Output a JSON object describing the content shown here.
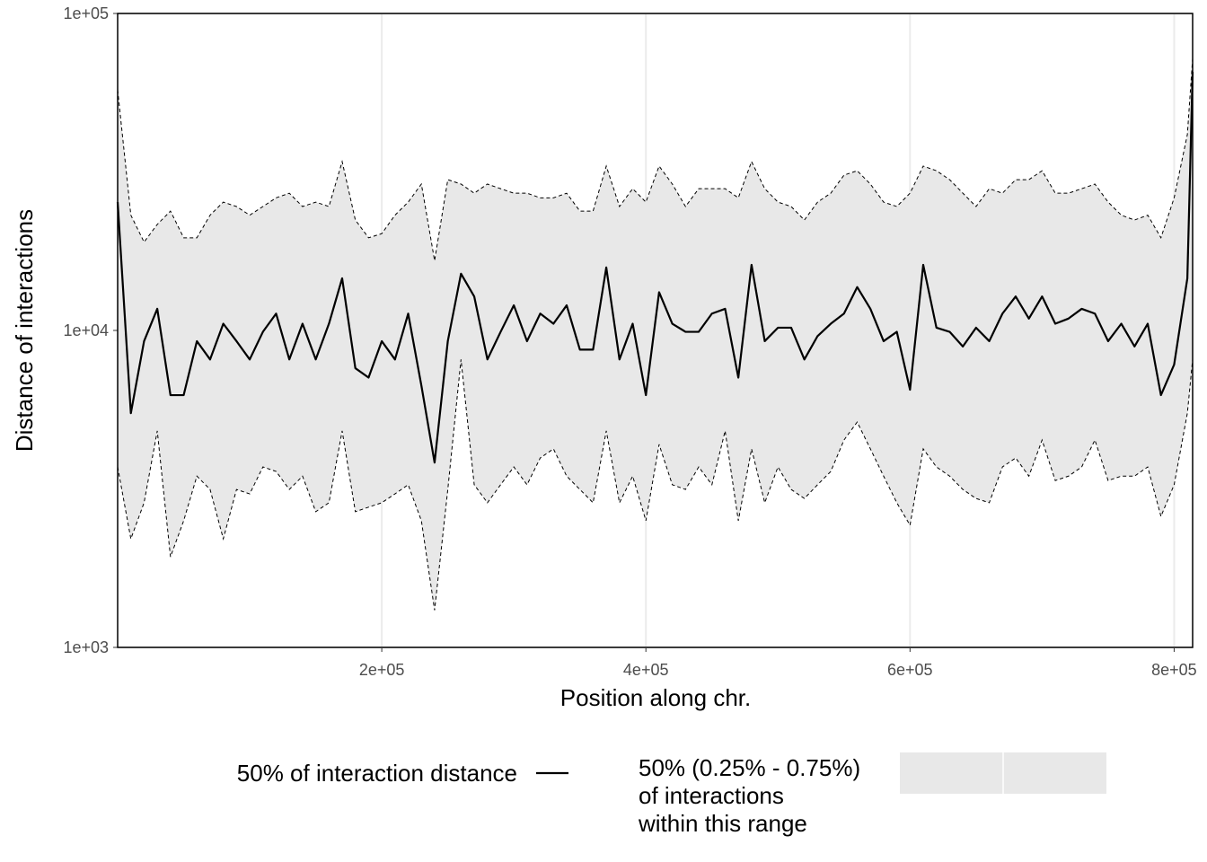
{
  "chart_data": {
    "type": "line",
    "xlabel": "Position along chr.",
    "ylabel": "Distance of interactions",
    "log_y": true,
    "grid": true,
    "legend": "bottom",
    "xlim": [
      0,
      814000
    ],
    "ylim": [
      1000,
      100000
    ],
    "xticks": [
      {
        "value": 200000,
        "label": "2e+05"
      },
      {
        "value": 400000,
        "label": "4e+05"
      },
      {
        "value": 600000,
        "label": "6e+05"
      },
      {
        "value": 800000,
        "label": "8e+05"
      }
    ],
    "yticks": [
      {
        "value": 1000,
        "label": "1e+03"
      },
      {
        "value": 10000,
        "label": "1e+04"
      },
      {
        "value": 100000,
        "label": "1e+05"
      }
    ],
    "x": [
      0,
      10000,
      20000,
      30000,
      40000,
      50000,
      60000,
      70000,
      80000,
      90000,
      100000,
      110000,
      120000,
      130000,
      140000,
      150000,
      160000,
      170000,
      180000,
      190000,
      200000,
      210000,
      220000,
      230000,
      240000,
      250000,
      260000,
      270000,
      280000,
      290000,
      300000,
      310000,
      320000,
      330000,
      340000,
      350000,
      360000,
      370000,
      380000,
      390000,
      400000,
      410000,
      420000,
      430000,
      440000,
      450000,
      460000,
      470000,
      480000,
      490000,
      500000,
      510000,
      520000,
      530000,
      540000,
      550000,
      560000,
      570000,
      580000,
      590000,
      600000,
      610000,
      620000,
      630000,
      640000,
      650000,
      660000,
      670000,
      680000,
      690000,
      700000,
      710000,
      720000,
      730000,
      740000,
      750000,
      760000,
      770000,
      780000,
      790000,
      800000,
      810000,
      814000
    ],
    "series": [
      {
        "name": "50% of interaction distance",
        "color": "#000000",
        "values": [
          25400,
          5480,
          9250,
          11700,
          6250,
          6250,
          9250,
          8100,
          10500,
          9250,
          8100,
          9900,
          11300,
          8100,
          10500,
          8100,
          10500,
          14600,
          7600,
          7100,
          9250,
          8100,
          11300,
          6700,
          3830,
          9250,
          15100,
          12800,
          8100,
          9900,
          12000,
          9250,
          11300,
          10500,
          12000,
          8700,
          8700,
          15800,
          8100,
          10500,
          6250,
          13200,
          10500,
          9900,
          9900,
          11300,
          11700,
          7100,
          16100,
          9250,
          10200,
          10200,
          8100,
          9600,
          10500,
          11300,
          13700,
          11700,
          9250,
          9900,
          6500,
          16100,
          10200,
          9900,
          8900,
          10200,
          9250,
          11300,
          12800,
          10900,
          12800,
          10500,
          10900,
          11700,
          11300,
          9250,
          10500,
          8900,
          10500,
          6250,
          7800,
          14600,
          65400
        ]
      }
    ],
    "band": {
      "name_lines": [
        "50% (0.25% - 0.75%)",
        "of interactions",
        "within this range"
      ],
      "color": "#e8e8e8",
      "upper": [
        57400,
        23100,
        19000,
        21600,
        23800,
        19600,
        19600,
        23100,
        25400,
        24600,
        23100,
        24600,
        26200,
        27100,
        24600,
        25400,
        24600,
        34100,
        22300,
        19600,
        20200,
        23100,
        25400,
        28960,
        16600,
        29900,
        28960,
        27100,
        28960,
        28000,
        27100,
        27100,
        26200,
        26200,
        27100,
        23800,
        23800,
        33000,
        24600,
        28000,
        25400,
        33000,
        28960,
        24600,
        28000,
        28000,
        28000,
        26200,
        34100,
        28000,
        25400,
        24600,
        22300,
        25400,
        27100,
        30900,
        31900,
        28960,
        25400,
        24600,
        27100,
        33000,
        31900,
        29900,
        27100,
        24600,
        28000,
        27100,
        29900,
        29900,
        31900,
        27100,
        27100,
        28000,
        28960,
        25400,
        23100,
        22300,
        23100,
        19600,
        26200,
        41500,
        72100
      ],
      "lower": [
        3710,
        2200,
        2860,
        4820,
        1930,
        2510,
        3470,
        3150,
        2200,
        3150,
        3050,
        3710,
        3590,
        3150,
        3470,
        2680,
        2860,
        4820,
        2680,
        2770,
        2860,
        3050,
        3260,
        2510,
        1310,
        3150,
        8100,
        3260,
        2860,
        3260,
        3710,
        3260,
        3960,
        4230,
        3470,
        3150,
        2860,
        4820,
        2860,
        3470,
        2510,
        4370,
        3260,
        3150,
        3710,
        3260,
        4820,
        2510,
        4230,
        2860,
        3710,
        3150,
        2950,
        3260,
        3590,
        4510,
        5140,
        4230,
        3470,
        2860,
        2430,
        4230,
        3710,
        3470,
        3150,
        2950,
        2860,
        3710,
        3960,
        3470,
        4510,
        3360,
        3470,
        3710,
        4510,
        3360,
        3470,
        3470,
        3710,
        2590,
        3260,
        5480,
        8100
      ]
    }
  }
}
